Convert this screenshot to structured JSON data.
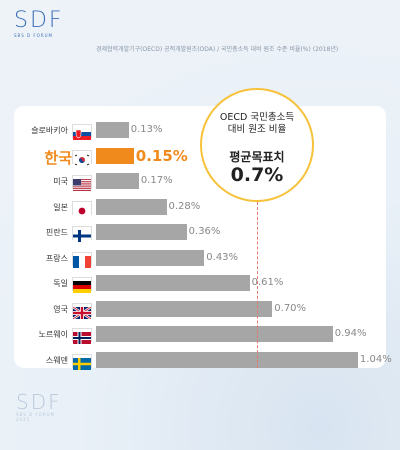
{
  "logo": {
    "text": "SDF",
    "sub": "SBS D FORUM"
  },
  "logo_bottom": {
    "text": "SDF",
    "sub": "SBS D FORUM",
    "year": "2021"
  },
  "subtitle": "경제협력개발기구(OECD) 공적개발원조(ODA) / 국민총소득 대비 원조 수준 비율(%) (2018년)",
  "callout": {
    "line1": "OECD 국민총소득",
    "line2": "대비 원조 비율",
    "line3": "평균목표치",
    "value": "0.7%"
  },
  "colors": {
    "bar": "#a6a6a6",
    "highlight": "#f08a1c",
    "circle_border": "#f7c23a",
    "refline": "#e07a6a"
  },
  "chart_data": {
    "type": "bar",
    "orientation": "horizontal",
    "categories": [
      "슬로바키아",
      "한국",
      "미국",
      "일본",
      "핀란드",
      "프랑스",
      "독일",
      "영국",
      "노르웨이",
      "스웨덴"
    ],
    "values": [
      0.13,
      0.15,
      0.17,
      0.28,
      0.36,
      0.43,
      0.61,
      0.7,
      0.94,
      1.04
    ],
    "value_labels": [
      "0.13%",
      "0.15%",
      "0.17%",
      "0.28%",
      "0.36%",
      "0.43%",
      "0.61%",
      "0.70%",
      "0.94%",
      "1.04%"
    ],
    "flags": [
      "slovakia-flag",
      "korea-flag",
      "usa-flag",
      "japan-flag",
      "finland-flag",
      "france-flag",
      "germany-flag",
      "uk-flag",
      "norway-flag",
      "sweden-flag"
    ],
    "highlight_index": 1,
    "reference_value": 0.7
  }
}
